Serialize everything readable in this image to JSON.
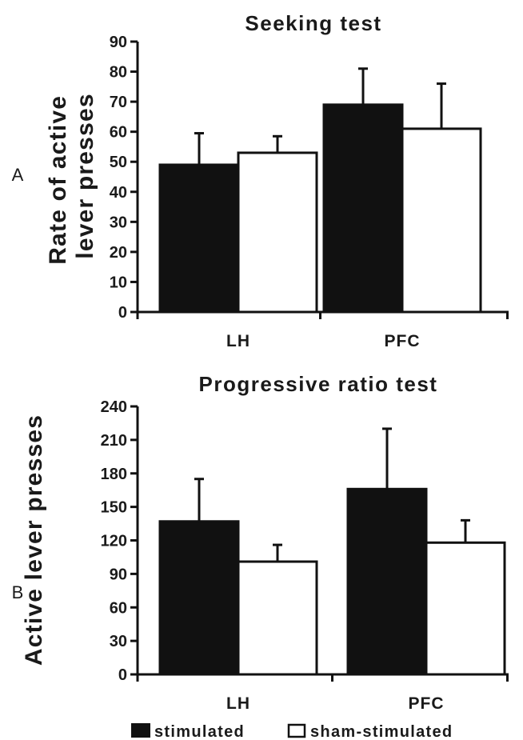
{
  "chart_data": [
    {
      "panel_label": "A",
      "type": "bar",
      "title": "Seeking test",
      "ylabel": "Rate of active lever presses",
      "ylabel_lines": [
        "Rate of active",
        "lever presses"
      ],
      "xlabel": "",
      "categories": [
        "LH",
        "PFC"
      ],
      "ylim": [
        0,
        90
      ],
      "yticks": [
        0,
        10,
        20,
        30,
        40,
        50,
        60,
        70,
        80,
        90
      ],
      "series": [
        {
          "name": "stimulated",
          "color": "#111111",
          "values": [
            49,
            69
          ],
          "errors": [
            10.5,
            12
          ]
        },
        {
          "name": "sham-stimulated",
          "color": "#ffffff",
          "values": [
            53,
            61
          ],
          "errors": [
            5.5,
            15
          ]
        }
      ],
      "grid": false,
      "legend": "bottom"
    },
    {
      "panel_label": "B",
      "type": "bar",
      "title": "Progressive ratio test",
      "ylabel": "Active lever presses",
      "xlabel": "",
      "categories": [
        "LH",
        "PFC"
      ],
      "ylim": [
        0,
        240
      ],
      "yticks": [
        0,
        30,
        60,
        90,
        120,
        150,
        180,
        210,
        240
      ],
      "series": [
        {
          "name": "stimulated",
          "color": "#111111",
          "values": [
            137,
            166
          ],
          "errors": [
            38,
            54
          ]
        },
        {
          "name": "sham-stimulated",
          "color": "#ffffff",
          "values": [
            101,
            118
          ],
          "errors": [
            15,
            20
          ]
        }
      ],
      "grid": false,
      "legend": "bottom"
    }
  ],
  "legend": {
    "items": [
      {
        "label": "stimulated",
        "color": "#111111"
      },
      {
        "label": "sham-stimulated",
        "color": "#ffffff"
      }
    ]
  }
}
